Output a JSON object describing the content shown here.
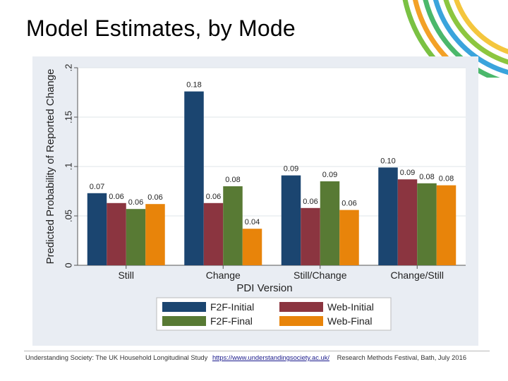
{
  "slide": {
    "title": "Model Estimates, by Mode"
  },
  "footer": {
    "source": "Understanding Society: The UK Household Longitudinal Study",
    "url": "https://www.understandingsociety.ac.uk/",
    "event": "Research Methods Festival, Bath, July 2016"
  },
  "decor": {
    "arc_colors": [
      "#f4c63d",
      "#8cc63f",
      "#3aa4dc",
      "#4bb86b",
      "#f3a127",
      "#7ac143"
    ]
  },
  "chart_data": {
    "type": "bar",
    "title": "",
    "xlabel": "PDI Version",
    "ylabel": "Predicted Probability of Reported Change",
    "ylim": [
      0,
      0.2
    ],
    "yticks": [
      0,
      0.05,
      0.1,
      0.15,
      0.2
    ],
    "ytick_labels": [
      "0",
      ".05",
      ".1",
      ".15",
      ".2"
    ],
    "grid": true,
    "legend_position": "bottom",
    "categories": [
      "Still",
      "Change",
      "Still/Change",
      "Change/Still"
    ],
    "series": [
      {
        "name": "F2F-Initial",
        "color": "#1b4570",
        "values": [
          0.073,
          0.176,
          0.091,
          0.099
        ],
        "labels": [
          "0.07",
          "0.18",
          "0.09",
          "0.10"
        ]
      },
      {
        "name": "Web-Initial",
        "color": "#8b3540",
        "values": [
          0.063,
          0.063,
          0.058,
          0.087
        ],
        "labels": [
          "0.06",
          "0.06",
          "0.06",
          "0.09"
        ]
      },
      {
        "name": "F2F-Final",
        "color": "#587a34",
        "values": [
          0.057,
          0.08,
          0.085,
          0.083
        ],
        "labels": [
          "0.06",
          "0.08",
          "0.09",
          "0.08"
        ]
      },
      {
        "name": "Web-Final",
        "color": "#e8840a",
        "values": [
          0.062,
          0.037,
          0.056,
          0.081
        ],
        "labels": [
          "0.06",
          "0.04",
          "0.06",
          "0.08"
        ]
      }
    ]
  }
}
